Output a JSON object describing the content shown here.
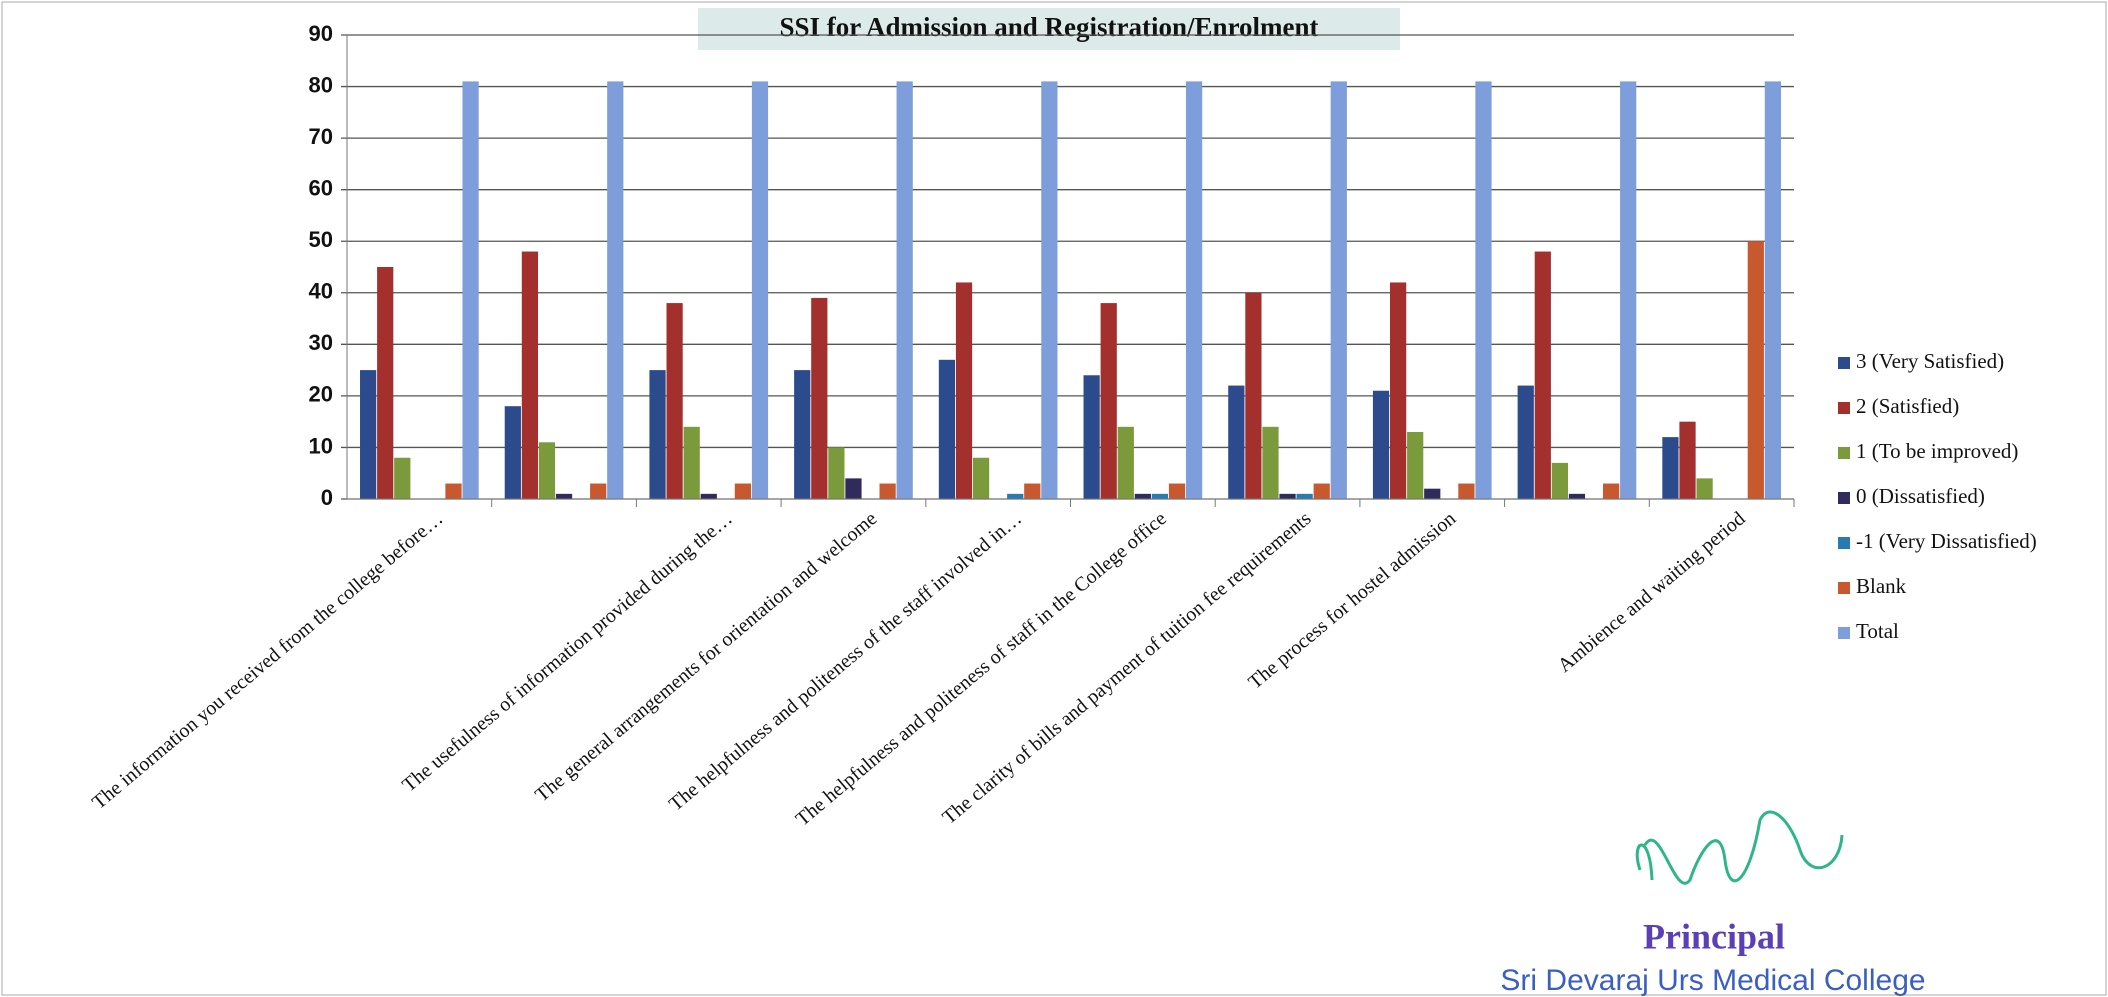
{
  "chart_data": {
    "type": "bar",
    "title": "SSI for Admission and Registration/Enrolment",
    "categories": [
      "The information you received from the college before…",
      null,
      "The usefulness of information provided during the…",
      "The general arrangements for orientation and welcome",
      "The helpfulness and politeness of  the staff involved in…",
      "The helpfulness and politeness of staff in the College office",
      "The clarity of bills and payment of tuition fee requirements",
      "The process for hostel admission",
      null,
      "Ambience  and waiting period"
    ],
    "series": [
      {
        "name": "3 (Very Satisfied)",
        "color": "#2b4b8c",
        "values": [
          25,
          18,
          25,
          25,
          27,
          24,
          22,
          21,
          22,
          12
        ]
      },
      {
        "name": "2 (Satisfied)",
        "color": "#a4302d",
        "values": [
          45,
          48,
          38,
          39,
          42,
          38,
          40,
          42,
          48,
          15
        ]
      },
      {
        "name": "1 (To be improved)",
        "color": "#7b9a3c",
        "values": [
          8,
          11,
          14,
          10,
          8,
          14,
          14,
          13,
          7,
          4
        ]
      },
      {
        "name": "0 (Dissatisfied)",
        "color": "#2f2b5c",
        "values": [
          0,
          1,
          1,
          4,
          0,
          1,
          1,
          2,
          1,
          0
        ]
      },
      {
        "name": "-1 (Very Dissatisfied)",
        "color": "#2a7ab2",
        "values": [
          0,
          0,
          0,
          0,
          1,
          1,
          1,
          0,
          0,
          0
        ]
      },
      {
        "name": "Blank",
        "color": "#c8582e",
        "values": [
          3,
          3,
          3,
          3,
          3,
          3,
          3,
          3,
          3,
          50
        ]
      },
      {
        "name": "Total",
        "color": "#7d9ddb",
        "values": [
          81,
          81,
          81,
          81,
          81,
          81,
          81,
          81,
          81,
          81
        ]
      }
    ],
    "ylim": [
      0,
      90
    ],
    "yticks": [
      0,
      10,
      20,
      30,
      40,
      50,
      60,
      70,
      80,
      90
    ],
    "grid": true,
    "legend": "right"
  },
  "signature": {
    "title": "Principal",
    "institution": "Sri Devaraj Urs Medical College"
  }
}
